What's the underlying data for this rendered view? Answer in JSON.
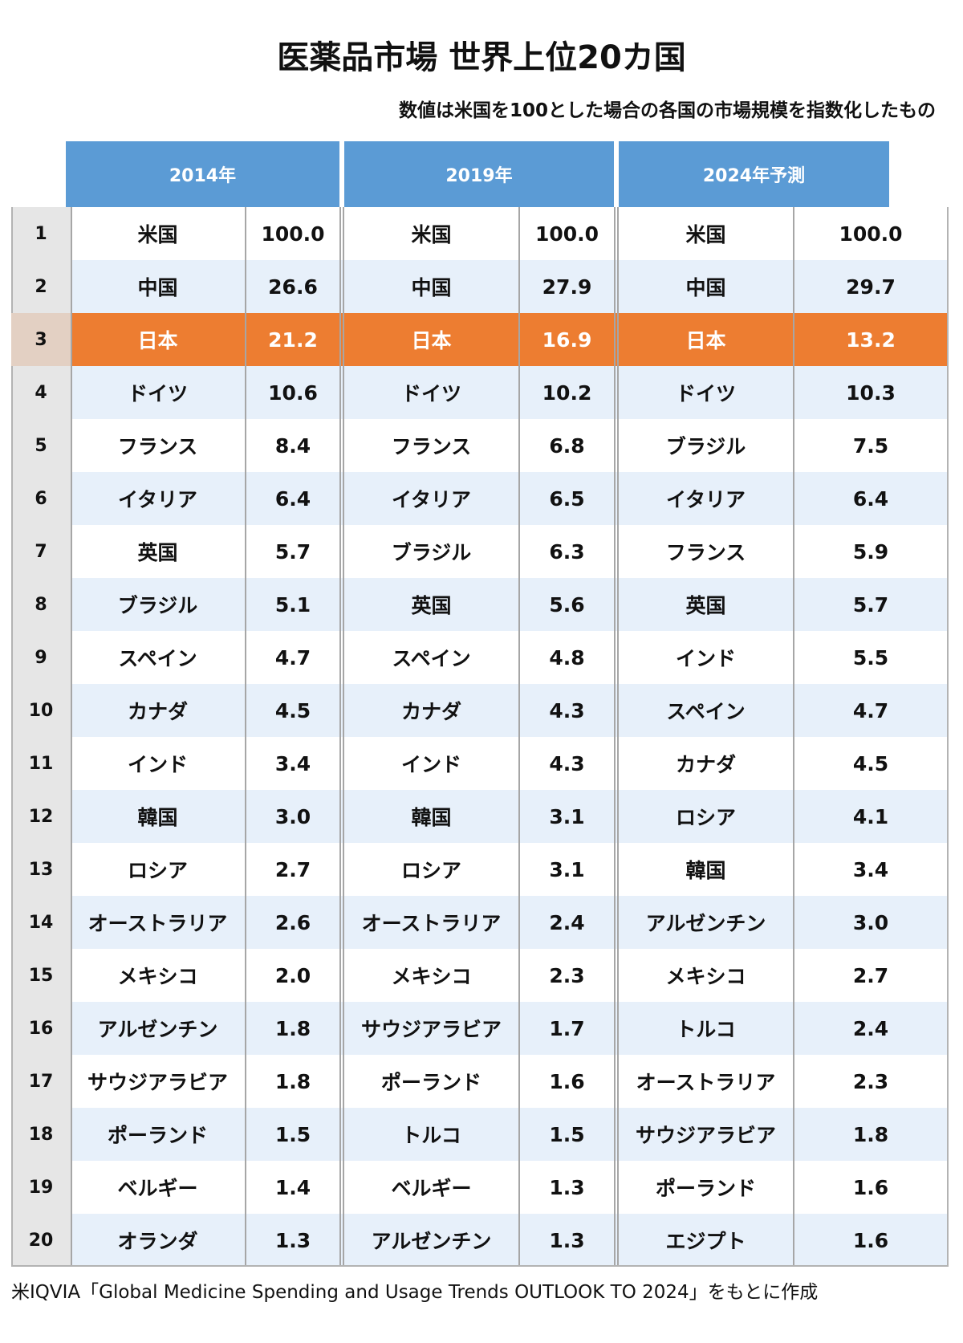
{
  "chart_data": {
    "type": "table",
    "title": "医薬品市場 世界上位20カ国",
    "subtitle": "数値は米国を100とした場合の各国の市場規模を指数化したもの",
    "periods": [
      "2014年",
      "2019年",
      "2024年予測"
    ],
    "highlight_rank": 3,
    "colors": {
      "header": "#5b9bd5",
      "highlight": "#ed7d31",
      "stripe": "#e7f0fa"
    },
    "rows": [
      {
        "rank": "1",
        "entries": [
          {
            "country": "米国",
            "value": "100.0"
          },
          {
            "country": "米国",
            "value": "100.0"
          },
          {
            "country": "米国",
            "value": "100.0"
          }
        ]
      },
      {
        "rank": "2",
        "entries": [
          {
            "country": "中国",
            "value": "26.6"
          },
          {
            "country": "中国",
            "value": "27.9"
          },
          {
            "country": "中国",
            "value": "29.7"
          }
        ]
      },
      {
        "rank": "3",
        "entries": [
          {
            "country": "日本",
            "value": "21.2"
          },
          {
            "country": "日本",
            "value": "16.9"
          },
          {
            "country": "日本",
            "value": "13.2"
          }
        ]
      },
      {
        "rank": "4",
        "entries": [
          {
            "country": "ドイツ",
            "value": "10.6"
          },
          {
            "country": "ドイツ",
            "value": "10.2"
          },
          {
            "country": "ドイツ",
            "value": "10.3"
          }
        ]
      },
      {
        "rank": "5",
        "entries": [
          {
            "country": "フランス",
            "value": "8.4"
          },
          {
            "country": "フランス",
            "value": "6.8"
          },
          {
            "country": "ブラジル",
            "value": "7.5"
          }
        ]
      },
      {
        "rank": "6",
        "entries": [
          {
            "country": "イタリア",
            "value": "6.4"
          },
          {
            "country": "イタリア",
            "value": "6.5"
          },
          {
            "country": "イタリア",
            "value": "6.4"
          }
        ]
      },
      {
        "rank": "7",
        "entries": [
          {
            "country": "英国",
            "value": "5.7"
          },
          {
            "country": "ブラジル",
            "value": "6.3"
          },
          {
            "country": "フランス",
            "value": "5.9"
          }
        ]
      },
      {
        "rank": "8",
        "entries": [
          {
            "country": "ブラジル",
            "value": "5.1"
          },
          {
            "country": "英国",
            "value": "5.6"
          },
          {
            "country": "英国",
            "value": "5.7"
          }
        ]
      },
      {
        "rank": "9",
        "entries": [
          {
            "country": "スペイン",
            "value": "4.7"
          },
          {
            "country": "スペイン",
            "value": "4.8"
          },
          {
            "country": "インド",
            "value": "5.5"
          }
        ]
      },
      {
        "rank": "10",
        "entries": [
          {
            "country": "カナダ",
            "value": "4.5"
          },
          {
            "country": "カナダ",
            "value": "4.3"
          },
          {
            "country": "スペイン",
            "value": "4.7"
          }
        ]
      },
      {
        "rank": "11",
        "entries": [
          {
            "country": "インド",
            "value": "3.4"
          },
          {
            "country": "インド",
            "value": "4.3"
          },
          {
            "country": "カナダ",
            "value": "4.5"
          }
        ]
      },
      {
        "rank": "12",
        "entries": [
          {
            "country": "韓国",
            "value": "3.0"
          },
          {
            "country": "韓国",
            "value": "3.1"
          },
          {
            "country": "ロシア",
            "value": "4.1"
          }
        ]
      },
      {
        "rank": "13",
        "entries": [
          {
            "country": "ロシア",
            "value": "2.7"
          },
          {
            "country": "ロシア",
            "value": "3.1"
          },
          {
            "country": "韓国",
            "value": "3.4"
          }
        ]
      },
      {
        "rank": "14",
        "entries": [
          {
            "country": "オーストラリア",
            "value": "2.6"
          },
          {
            "country": "オーストラリア",
            "value": "2.4"
          },
          {
            "country": "アルゼンチン",
            "value": "3.0"
          }
        ]
      },
      {
        "rank": "15",
        "entries": [
          {
            "country": "メキシコ",
            "value": "2.0"
          },
          {
            "country": "メキシコ",
            "value": "2.3"
          },
          {
            "country": "メキシコ",
            "value": "2.7"
          }
        ]
      },
      {
        "rank": "16",
        "entries": [
          {
            "country": "アルゼンチン",
            "value": "1.8"
          },
          {
            "country": "サウジアラビア",
            "value": "1.7"
          },
          {
            "country": "トルコ",
            "value": "2.4"
          }
        ]
      },
      {
        "rank": "17",
        "entries": [
          {
            "country": "サウジアラビア",
            "value": "1.8"
          },
          {
            "country": "ポーランド",
            "value": "1.6"
          },
          {
            "country": "オーストラリア",
            "value": "2.3"
          }
        ]
      },
      {
        "rank": "18",
        "entries": [
          {
            "country": "ポーランド",
            "value": "1.5"
          },
          {
            "country": "トルコ",
            "value": "1.5"
          },
          {
            "country": "サウジアラビア",
            "value": "1.8"
          }
        ]
      },
      {
        "rank": "19",
        "entries": [
          {
            "country": "ベルギー",
            "value": "1.4"
          },
          {
            "country": "ベルギー",
            "value": "1.3"
          },
          {
            "country": "ポーランド",
            "value": "1.6"
          }
        ]
      },
      {
        "rank": "20",
        "entries": [
          {
            "country": "オランダ",
            "value": "1.3"
          },
          {
            "country": "アルゼンチン",
            "value": "1.3"
          },
          {
            "country": "エジプト",
            "value": "1.6"
          }
        ]
      }
    ]
  },
  "footnote": "米IQVIA「Global Medicine Spending and Usage Trends OUTLOOK TO 2024」をもとに作成"
}
